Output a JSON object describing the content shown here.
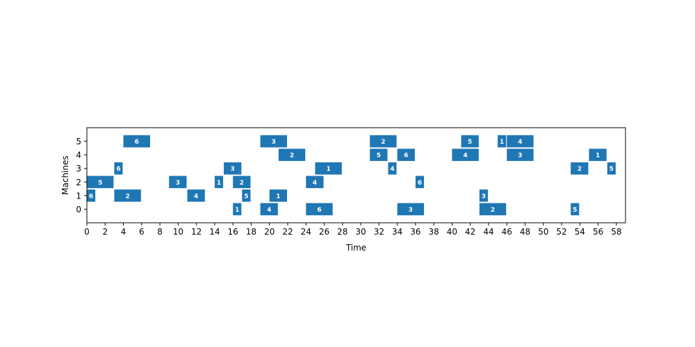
{
  "chart_data": {
    "type": "gantt",
    "xlabel": "Time",
    "ylabel": "Machines",
    "xlim": [
      0,
      59
    ],
    "ylim": [
      -1,
      6
    ],
    "x_ticks": [
      0,
      2,
      4,
      6,
      8,
      10,
      12,
      14,
      16,
      18,
      20,
      22,
      24,
      26,
      28,
      30,
      32,
      34,
      36,
      38,
      40,
      42,
      44,
      46,
      48,
      50,
      52,
      54,
      56,
      58
    ],
    "y_ticks": [
      0,
      1,
      2,
      3,
      4,
      5
    ],
    "color": "#1f77b4",
    "tasks": [
      {
        "machine": 0,
        "start": 16,
        "duration": 1,
        "job": "1"
      },
      {
        "machine": 0,
        "start": 19,
        "duration": 2,
        "job": "4"
      },
      {
        "machine": 0,
        "start": 24,
        "duration": 3,
        "job": "6"
      },
      {
        "machine": 0,
        "start": 34,
        "duration": 3,
        "job": "3"
      },
      {
        "machine": 0,
        "start": 43,
        "duration": 3,
        "job": "2"
      },
      {
        "machine": 0,
        "start": 53,
        "duration": 1,
        "job": "5"
      },
      {
        "machine": 1,
        "start": 0,
        "duration": 1,
        "job": "6"
      },
      {
        "machine": 1,
        "start": 3,
        "duration": 3,
        "job": "2"
      },
      {
        "machine": 1,
        "start": 11,
        "duration": 2,
        "job": "4"
      },
      {
        "machine": 1,
        "start": 17,
        "duration": 1,
        "job": "5"
      },
      {
        "machine": 1,
        "start": 20,
        "duration": 2,
        "job": "1"
      },
      {
        "machine": 1,
        "start": 43,
        "duration": 1,
        "job": "3"
      },
      {
        "machine": 2,
        "start": 0,
        "duration": 3,
        "job": "5"
      },
      {
        "machine": 2,
        "start": 9,
        "duration": 2,
        "job": "3"
      },
      {
        "machine": 2,
        "start": 14,
        "duration": 1,
        "job": "1"
      },
      {
        "machine": 2,
        "start": 16,
        "duration": 2,
        "job": "2"
      },
      {
        "machine": 2,
        "start": 24,
        "duration": 2,
        "job": "4"
      },
      {
        "machine": 2,
        "start": 36,
        "duration": 1,
        "job": "6"
      },
      {
        "machine": 3,
        "start": 3,
        "duration": 1,
        "job": "6"
      },
      {
        "machine": 3,
        "start": 15,
        "duration": 2,
        "job": "3"
      },
      {
        "machine": 3,
        "start": 25,
        "duration": 3,
        "job": "1"
      },
      {
        "machine": 3,
        "start": 33,
        "duration": 1,
        "job": "4"
      },
      {
        "machine": 3,
        "start": 53,
        "duration": 2,
        "job": "2"
      },
      {
        "machine": 3,
        "start": 57,
        "duration": 1,
        "job": "5"
      },
      {
        "machine": 4,
        "start": 21,
        "duration": 3,
        "job": "2"
      },
      {
        "machine": 4,
        "start": 31,
        "duration": 2,
        "job": "5"
      },
      {
        "machine": 4,
        "start": 34,
        "duration": 2,
        "job": "6"
      },
      {
        "machine": 4,
        "start": 40,
        "duration": 3,
        "job": "4"
      },
      {
        "machine": 4,
        "start": 46,
        "duration": 3,
        "job": "3"
      },
      {
        "machine": 4,
        "start": 55,
        "duration": 2,
        "job": "1"
      },
      {
        "machine": 5,
        "start": 4,
        "duration": 3,
        "job": "6"
      },
      {
        "machine": 5,
        "start": 19,
        "duration": 3,
        "job": "3"
      },
      {
        "machine": 5,
        "start": 31,
        "duration": 3,
        "job": "2"
      },
      {
        "machine": 5,
        "start": 41,
        "duration": 2,
        "job": "5"
      },
      {
        "machine": 5,
        "start": 45,
        "duration": 1,
        "job": "1"
      },
      {
        "machine": 5,
        "start": 46,
        "duration": 3,
        "job": "4"
      }
    ]
  }
}
